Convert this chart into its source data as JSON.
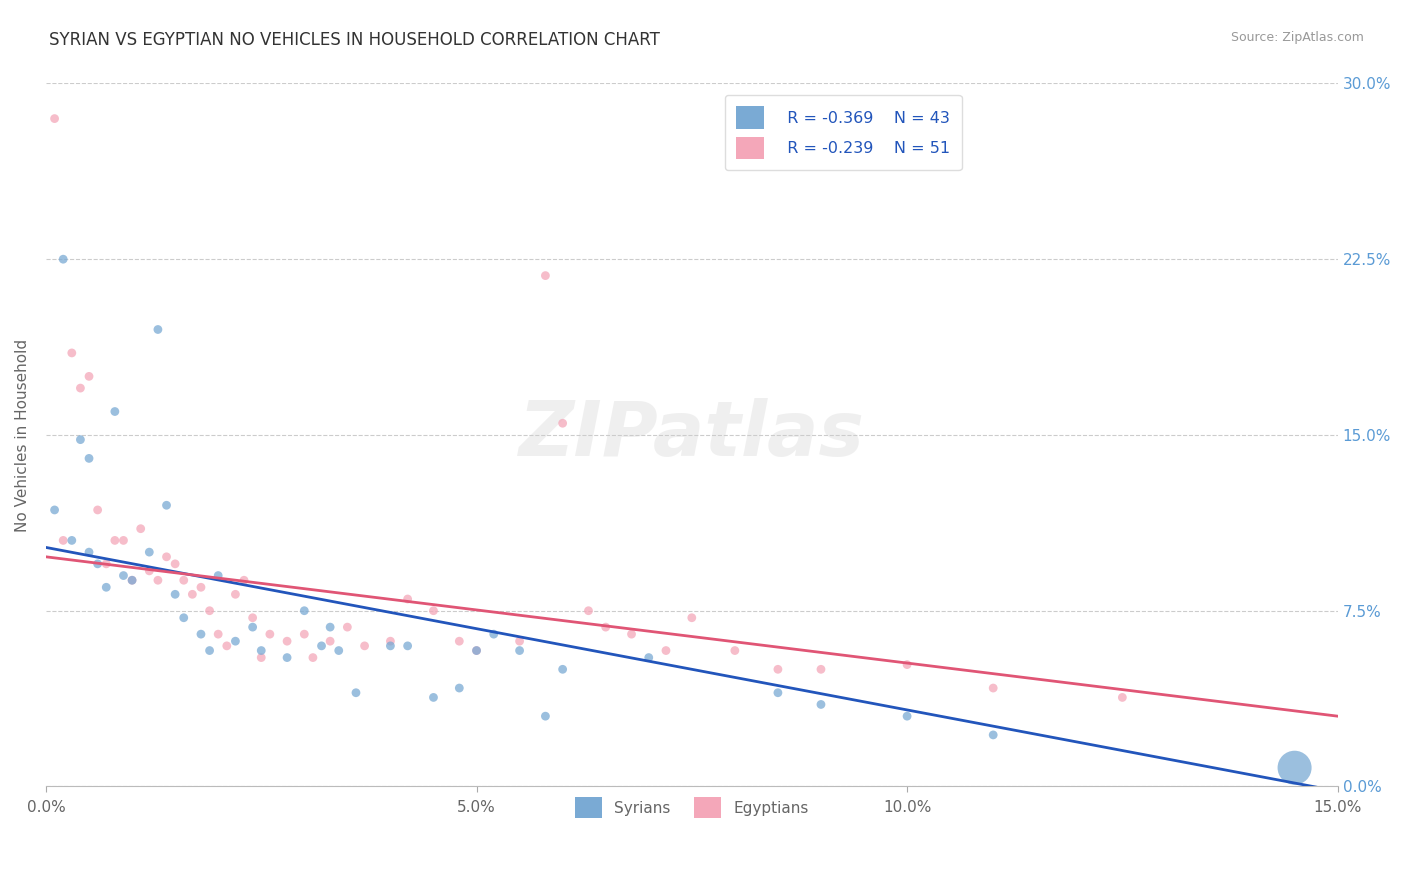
{
  "title": "SYRIAN VS EGYPTIAN NO VEHICLES IN HOUSEHOLD CORRELATION CHART",
  "source": "Source: ZipAtlas.com",
  "ylabel": "No Vehicles in Household",
  "xlim": [
    0.0,
    0.15
  ],
  "ylim": [
    0.0,
    0.3
  ],
  "xticks": [
    0.0,
    0.05,
    0.1,
    0.15
  ],
  "yticks": [
    0.0,
    0.075,
    0.15,
    0.225,
    0.3
  ],
  "xtick_labels": [
    "0.0%",
    "5.0%",
    "10.0%",
    "15.0%"
  ],
  "ytick_labels_right": [
    "0.0%",
    "7.5%",
    "15.0%",
    "22.5%",
    "30.0%"
  ],
  "syrian_color": "#7aaad4",
  "egyptian_color": "#f4a7b9",
  "syrian_line_color": "#2255bb",
  "egyptian_line_color": "#e05575",
  "legend_R_syrian": "R = -0.369",
  "legend_N_syrian": "N = 43",
  "legend_R_egyptian": "R = -0.239",
  "legend_N_egyptian": "N = 51",
  "watermark": "ZIPatlas",
  "background_color": "#ffffff",
  "grid_color": "#cccccc",
  "title_color": "#333333",
  "axis_label_color": "#666666",
  "tick_color_right": "#5b9bd5",
  "tick_color_bottom": "#666666",
  "syrian_line_y0": 0.102,
  "syrian_line_y1": -0.002,
  "egyptian_line_y0": 0.098,
  "egyptian_line_y1": 0.03,
  "syrian_points": [
    [
      0.001,
      0.118
    ],
    [
      0.002,
      0.225
    ],
    [
      0.003,
      0.105
    ],
    [
      0.004,
      0.148
    ],
    [
      0.005,
      0.14
    ],
    [
      0.005,
      0.1
    ],
    [
      0.006,
      0.095
    ],
    [
      0.007,
      0.085
    ],
    [
      0.008,
      0.16
    ],
    [
      0.009,
      0.09
    ],
    [
      0.01,
      0.088
    ],
    [
      0.012,
      0.1
    ],
    [
      0.013,
      0.195
    ],
    [
      0.014,
      0.12
    ],
    [
      0.015,
      0.082
    ],
    [
      0.016,
      0.072
    ],
    [
      0.018,
      0.065
    ],
    [
      0.019,
      0.058
    ],
    [
      0.02,
      0.09
    ],
    [
      0.022,
      0.062
    ],
    [
      0.024,
      0.068
    ],
    [
      0.025,
      0.058
    ],
    [
      0.028,
      0.055
    ],
    [
      0.03,
      0.075
    ],
    [
      0.032,
      0.06
    ],
    [
      0.033,
      0.068
    ],
    [
      0.034,
      0.058
    ],
    [
      0.036,
      0.04
    ],
    [
      0.04,
      0.06
    ],
    [
      0.042,
      0.06
    ],
    [
      0.045,
      0.038
    ],
    [
      0.048,
      0.042
    ],
    [
      0.05,
      0.058
    ],
    [
      0.052,
      0.065
    ],
    [
      0.055,
      0.058
    ],
    [
      0.058,
      0.03
    ],
    [
      0.06,
      0.05
    ],
    [
      0.07,
      0.055
    ],
    [
      0.085,
      0.04
    ],
    [
      0.09,
      0.035
    ],
    [
      0.1,
      0.03
    ],
    [
      0.11,
      0.022
    ],
    [
      0.145,
      0.008
    ]
  ],
  "syrian_sizes": [
    40,
    40,
    40,
    40,
    40,
    40,
    40,
    40,
    40,
    40,
    40,
    40,
    40,
    40,
    40,
    40,
    40,
    40,
    40,
    40,
    40,
    40,
    40,
    40,
    40,
    40,
    40,
    40,
    40,
    40,
    40,
    40,
    40,
    40,
    40,
    40,
    40,
    40,
    40,
    40,
    40,
    40,
    600
  ],
  "egyptian_points": [
    [
      0.001,
      0.285
    ],
    [
      0.002,
      0.105
    ],
    [
      0.003,
      0.185
    ],
    [
      0.004,
      0.17
    ],
    [
      0.005,
      0.175
    ],
    [
      0.006,
      0.118
    ],
    [
      0.007,
      0.095
    ],
    [
      0.008,
      0.105
    ],
    [
      0.009,
      0.105
    ],
    [
      0.01,
      0.088
    ],
    [
      0.011,
      0.11
    ],
    [
      0.012,
      0.092
    ],
    [
      0.013,
      0.088
    ],
    [
      0.014,
      0.098
    ],
    [
      0.015,
      0.095
    ],
    [
      0.016,
      0.088
    ],
    [
      0.017,
      0.082
    ],
    [
      0.018,
      0.085
    ],
    [
      0.019,
      0.075
    ],
    [
      0.02,
      0.065
    ],
    [
      0.021,
      0.06
    ],
    [
      0.022,
      0.082
    ],
    [
      0.023,
      0.088
    ],
    [
      0.024,
      0.072
    ],
    [
      0.025,
      0.055
    ],
    [
      0.026,
      0.065
    ],
    [
      0.028,
      0.062
    ],
    [
      0.03,
      0.065
    ],
    [
      0.031,
      0.055
    ],
    [
      0.033,
      0.062
    ],
    [
      0.035,
      0.068
    ],
    [
      0.037,
      0.06
    ],
    [
      0.04,
      0.062
    ],
    [
      0.042,
      0.08
    ],
    [
      0.045,
      0.075
    ],
    [
      0.048,
      0.062
    ],
    [
      0.05,
      0.058
    ],
    [
      0.055,
      0.062
    ],
    [
      0.058,
      0.218
    ],
    [
      0.06,
      0.155
    ],
    [
      0.063,
      0.075
    ],
    [
      0.065,
      0.068
    ],
    [
      0.068,
      0.065
    ],
    [
      0.072,
      0.058
    ],
    [
      0.075,
      0.072
    ],
    [
      0.08,
      0.058
    ],
    [
      0.085,
      0.05
    ],
    [
      0.09,
      0.05
    ],
    [
      0.1,
      0.052
    ],
    [
      0.11,
      0.042
    ],
    [
      0.125,
      0.038
    ]
  ],
  "egyptian_sizes": [
    40,
    40,
    40,
    40,
    40,
    40,
    40,
    40,
    40,
    40,
    40,
    40,
    40,
    40,
    40,
    40,
    40,
    40,
    40,
    40,
    40,
    40,
    40,
    40,
    40,
    40,
    40,
    40,
    40,
    40,
    40,
    40,
    40,
    40,
    40,
    40,
    40,
    40,
    40,
    40,
    40,
    40,
    40,
    40,
    40,
    40,
    40,
    40,
    40,
    40,
    40
  ]
}
